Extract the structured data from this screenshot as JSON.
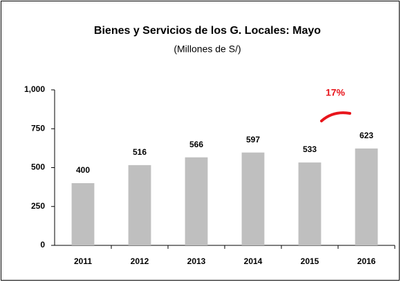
{
  "chart_data": {
    "type": "bar",
    "title": "Bienes y Servicios de los G. Locales: Mayo",
    "subtitle": "(Millones de S/)",
    "categories": [
      "2011",
      "2012",
      "2013",
      "2014",
      "2015",
      "2016"
    ],
    "values": [
      400,
      516,
      566,
      597,
      533,
      623
    ],
    "color": "#bfbfbf",
    "ylim": [
      0,
      1000
    ],
    "yticks": [
      0,
      250,
      500,
      750,
      {
        "value": 1000,
        "label": "1,000"
      }
    ],
    "annotation": "17%",
    "annotation_color": "#e8141b"
  }
}
